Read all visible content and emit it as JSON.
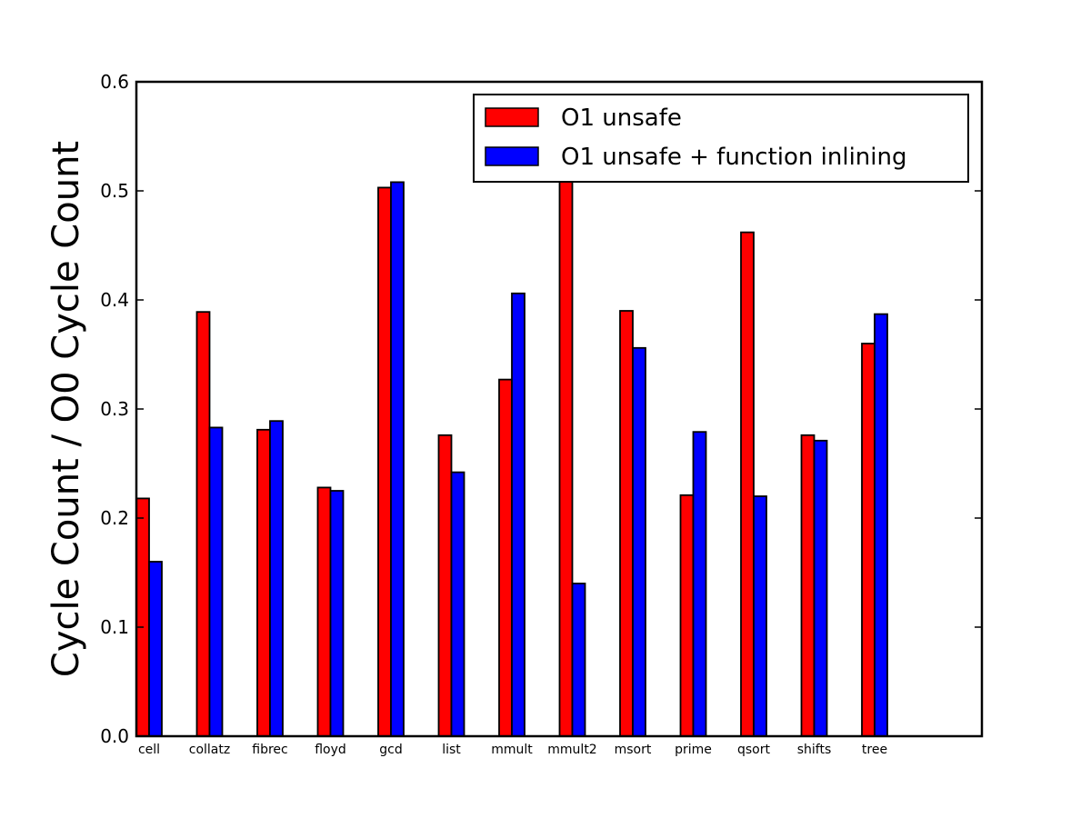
{
  "chart_data": {
    "type": "bar",
    "title": "",
    "xlabel": "",
    "ylabel": "Cycle Count / O0 Cycle Count",
    "ylim": [
      0.0,
      0.6
    ],
    "yticks": [
      "0.0",
      "0.1",
      "0.2",
      "0.3",
      "0.4",
      "0.5",
      "0.6"
    ],
    "grid": false,
    "legend_position": "top-right",
    "categories": [
      "cell",
      "collatz",
      "fibrec",
      "floyd",
      "gcd",
      "list",
      "mmult",
      "mmult2",
      "msort",
      "prime",
      "qsort",
      "shifts",
      "tree"
    ],
    "series": [
      {
        "name": "O1 unsafe",
        "color": "#ff0000",
        "values": [
          0.218,
          0.389,
          0.281,
          0.228,
          0.503,
          0.276,
          0.327,
          0.51,
          0.39,
          0.221,
          0.462,
          0.276,
          0.36
        ]
      },
      {
        "name": "O1 unsafe + function inlining",
        "color": "#0000ff",
        "values": [
          0.16,
          0.283,
          0.289,
          0.225,
          0.508,
          0.242,
          0.406,
          0.14,
          0.356,
          0.279,
          0.22,
          0.271,
          0.387
        ]
      }
    ]
  }
}
